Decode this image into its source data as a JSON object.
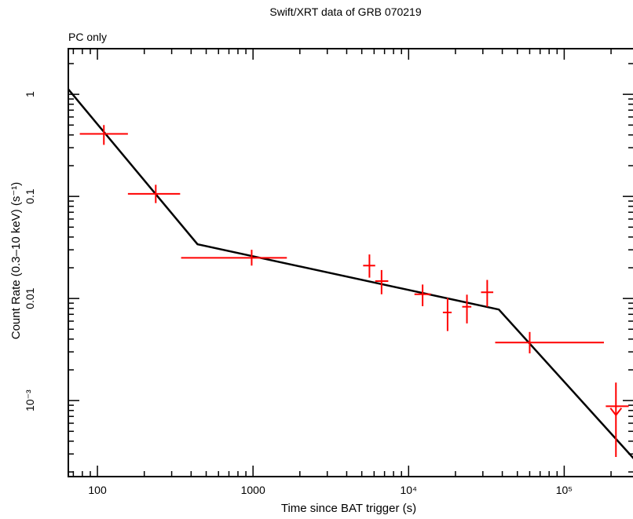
{
  "chart_data": {
    "type": "scatter",
    "title": "Swift/XRT data of GRB 070219",
    "subtitle": "PC only",
    "xlabel": "Time since BAT trigger (s)",
    "ylabel": "Count Rate (0.3–10 keV) (s⁻¹)",
    "xscale": "log",
    "yscale": "log",
    "xlim": [
      65,
      280000
    ],
    "ylim": [
      0.00018,
      2.8
    ],
    "x_ticks": [
      {
        "value": 100,
        "label": "100"
      },
      {
        "value": 1000,
        "label": "1000"
      },
      {
        "value": 10000,
        "label": "10⁴"
      },
      {
        "value": 100000,
        "label": "10⁵"
      }
    ],
    "y_ticks": [
      {
        "value": 1,
        "label": "1"
      },
      {
        "value": 0.1,
        "label": "0.1"
      },
      {
        "value": 0.01,
        "label": "0.01"
      },
      {
        "value": 0.001,
        "label": "10⁻³"
      }
    ],
    "grid": false,
    "colors": {
      "data": "#ff0000",
      "model": "#000000"
    },
    "series": [
      {
        "kind": "data",
        "points": [
          {
            "x": 110,
            "xlo": 77,
            "xhi": 157,
            "y": 0.41,
            "ylo": 0.32,
            "yhi": 0.5
          },
          {
            "x": 237,
            "xlo": 157,
            "xhi": 340,
            "y": 0.106,
            "ylo": 0.086,
            "yhi": 0.13
          },
          {
            "x": 980,
            "xlo": 345,
            "xhi": 1650,
            "y": 0.025,
            "ylo": 0.021,
            "yhi": 0.03
          },
          {
            "x": 5600,
            "xlo": 5100,
            "xhi": 6100,
            "y": 0.021,
            "ylo": 0.016,
            "yhi": 0.027
          },
          {
            "x": 6700,
            "xlo": 6100,
            "xhi": 7400,
            "y": 0.0148,
            "ylo": 0.011,
            "yhi": 0.019
          },
          {
            "x": 12300,
            "xlo": 10900,
            "xhi": 13900,
            "y": 0.011,
            "ylo": 0.0084,
            "yhi": 0.0137
          },
          {
            "x": 17800,
            "xlo": 16600,
            "xhi": 18900,
            "y": 0.0073,
            "ylo": 0.0048,
            "yhi": 0.0101
          },
          {
            "x": 23700,
            "xlo": 22100,
            "xhi": 25300,
            "y": 0.0083,
            "ylo": 0.0057,
            "yhi": 0.0109
          },
          {
            "x": 32000,
            "xlo": 29200,
            "xhi": 35000,
            "y": 0.0115,
            "ylo": 0.0083,
            "yhi": 0.0152
          },
          {
            "x": 60000,
            "xlo": 36000,
            "xhi": 180000,
            "y": 0.0037,
            "ylo": 0.0029,
            "yhi": 0.0047
          },
          {
            "x": 215000,
            "xlo": 185000,
            "xhi": 260000,
            "y": 0.00088,
            "ylo": 0.00028,
            "yhi": 0.0015
          }
        ],
        "upper_limit": {
          "x": 215000,
          "y": 0.00072
        }
      },
      {
        "kind": "model",
        "points": [
          {
            "x": 65,
            "y": 1.12
          },
          {
            "x": 440,
            "y": 0.034
          },
          {
            "x": 38000,
            "y": 0.0078
          },
          {
            "x": 280000,
            "y": 0.00027
          }
        ]
      }
    ]
  }
}
